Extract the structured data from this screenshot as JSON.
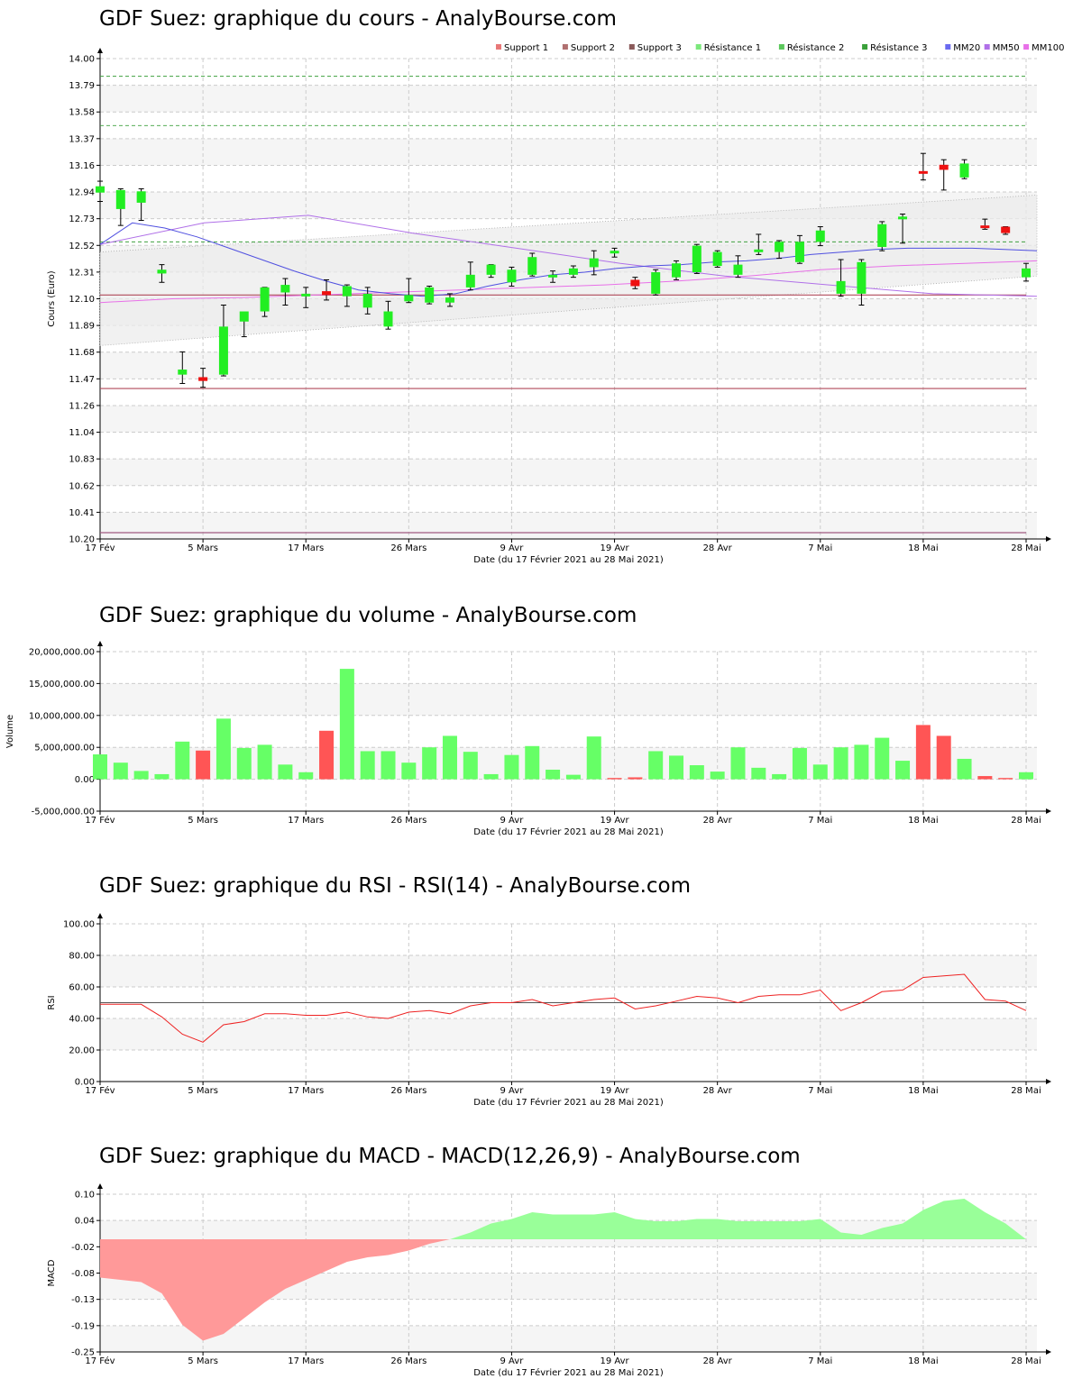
{
  "chart_data": [
    {
      "type": "candlestick",
      "title": "GDF Suez: graphique du cours - AnalyBourse.com",
      "ylabel": "Cours (Euro)",
      "xlabel": "Date (du 17 Février 2021 au 28 Mai 2021)",
      "ylim": [
        10.2,
        14.0
      ],
      "yticks": [
        "14.00",
        "13.79",
        "13.58",
        "13.37",
        "13.16",
        "12.94",
        "12.73",
        "12.52",
        "12.31",
        "12.10",
        "11.89",
        "11.68",
        "11.47",
        "11.26",
        "11.04",
        "10.83",
        "10.62",
        "10.41",
        "10.20"
      ],
      "xticks": [
        {
          "label": "17 Fév",
          "i": 0
        },
        {
          "label": "5 Mars",
          "i": 5
        },
        {
          "label": "17 Mars",
          "i": 10
        },
        {
          "label": "26 Mars",
          "i": 15
        },
        {
          "label": "9 Avr",
          "i": 20
        },
        {
          "label": "19 Avr",
          "i": 25
        },
        {
          "label": "28 Avr",
          "i": 30
        },
        {
          "label": "7 Mai",
          "i": 35
        },
        {
          "label": "18 Mai",
          "i": 40
        },
        {
          "label": "28 Mai",
          "i": 45
        }
      ],
      "legend": [
        "Support 1",
        "Support 2",
        "Support 3",
        "Résistance 1",
        "Résistance 2",
        "Résistance 3",
        "MM20",
        "MM50",
        "MM100"
      ],
      "legend_colors": [
        "#e87878",
        "#b07070",
        "#8a5a5a",
        "#7ce87c",
        "#5cc85c",
        "#3aa03a",
        "#6a6af0",
        "#b070e8",
        "#e870e8"
      ],
      "support_levels": [
        12.13,
        11.39,
        10.25
      ],
      "resistance_levels": [
        12.55,
        13.47,
        13.86
      ],
      "candles": [
        {
          "o": 12.94,
          "h": 13.03,
          "l": 12.87,
          "c": 12.99
        },
        {
          "o": 12.81,
          "h": 12.97,
          "l": 12.68,
          "c": 12.96
        },
        {
          "o": 12.86,
          "h": 12.97,
          "l": 12.72,
          "c": 12.95
        },
        {
          "o": 12.3,
          "h": 12.37,
          "l": 12.23,
          "c": 12.33
        },
        {
          "o": 11.5,
          "h": 11.68,
          "l": 11.43,
          "c": 11.54
        },
        {
          "o": 11.48,
          "h": 11.55,
          "l": 11.4,
          "c": 11.45
        },
        {
          "o": 11.5,
          "h": 12.05,
          "l": 11.49,
          "c": 11.88
        },
        {
          "o": 11.92,
          "h": 11.99,
          "l": 11.8,
          "c": 12.0
        },
        {
          "o": 12.0,
          "h": 12.19,
          "l": 11.96,
          "c": 12.19
        },
        {
          "o": 12.15,
          "h": 12.26,
          "l": 12.05,
          "c": 12.21
        },
        {
          "o": 12.12,
          "h": 12.19,
          "l": 12.03,
          "c": 12.14
        },
        {
          "o": 12.16,
          "h": 12.25,
          "l": 12.09,
          "c": 12.13
        },
        {
          "o": 12.12,
          "h": 12.21,
          "l": 12.04,
          "c": 12.2
        },
        {
          "o": 12.03,
          "h": 12.19,
          "l": 11.98,
          "c": 12.14
        },
        {
          "o": 11.88,
          "h": 12.08,
          "l": 11.86,
          "c": 12.0
        },
        {
          "o": 12.08,
          "h": 12.26,
          "l": 12.07,
          "c": 12.13
        },
        {
          "o": 12.07,
          "h": 12.2,
          "l": 12.06,
          "c": 12.19
        },
        {
          "o": 12.07,
          "h": 12.14,
          "l": 12.04,
          "c": 12.11
        },
        {
          "o": 12.19,
          "h": 12.39,
          "l": 12.17,
          "c": 12.29
        },
        {
          "o": 12.29,
          "h": 12.37,
          "l": 12.27,
          "c": 12.37
        },
        {
          "o": 12.23,
          "h": 12.35,
          "l": 12.2,
          "c": 12.33
        },
        {
          "o": 12.29,
          "h": 12.46,
          "l": 12.28,
          "c": 12.43
        },
        {
          "o": 12.29,
          "h": 12.32,
          "l": 12.23,
          "c": 12.29
        },
        {
          "o": 12.29,
          "h": 12.36,
          "l": 12.27,
          "c": 12.34
        },
        {
          "o": 12.35,
          "h": 12.48,
          "l": 12.29,
          "c": 12.42
        },
        {
          "o": 12.46,
          "h": 12.5,
          "l": 12.43,
          "c": 12.48
        },
        {
          "o": 12.25,
          "h": 12.27,
          "l": 12.18,
          "c": 12.2
        },
        {
          "o": 12.14,
          "h": 12.33,
          "l": 12.13,
          "c": 12.31
        },
        {
          "o": 12.27,
          "h": 12.4,
          "l": 12.25,
          "c": 12.38
        },
        {
          "o": 12.31,
          "h": 12.53,
          "l": 12.3,
          "c": 12.52
        },
        {
          "o": 12.36,
          "h": 12.48,
          "l": 12.35,
          "c": 12.47
        },
        {
          "o": 12.29,
          "h": 12.44,
          "l": 12.27,
          "c": 12.37
        },
        {
          "o": 12.47,
          "h": 12.61,
          "l": 12.45,
          "c": 12.49
        },
        {
          "o": 12.47,
          "h": 12.56,
          "l": 12.42,
          "c": 12.55
        },
        {
          "o": 12.39,
          "h": 12.6,
          "l": 12.38,
          "c": 12.55
        },
        {
          "o": 12.55,
          "h": 12.67,
          "l": 12.52,
          "c": 12.64
        },
        {
          "o": 12.14,
          "h": 12.41,
          "l": 12.12,
          "c": 12.24
        },
        {
          "o": 12.14,
          "h": 12.41,
          "l": 12.05,
          "c": 12.39
        },
        {
          "o": 12.51,
          "h": 12.71,
          "l": 12.48,
          "c": 12.69
        },
        {
          "o": 12.73,
          "h": 12.77,
          "l": 12.54,
          "c": 12.75
        },
        {
          "o": 13.11,
          "h": 13.25,
          "l": 13.04,
          "c": 13.1
        },
        {
          "o": 13.16,
          "h": 13.2,
          "l": 12.96,
          "c": 13.12
        },
        {
          "o": 13.06,
          "h": 13.2,
          "l": 13.05,
          "c": 13.17
        },
        {
          "o": 12.68,
          "h": 12.73,
          "l": 12.65,
          "c": 12.66
        },
        {
          "o": 12.67,
          "h": 12.67,
          "l": 12.61,
          "c": 12.62
        },
        {
          "o": 12.27,
          "h": 12.38,
          "l": 12.24,
          "c": 12.34
        }
      ],
      "mm20": [
        12.53,
        12.7,
        12.66,
        12.59,
        12.5,
        12.41,
        12.32,
        12.24,
        12.17,
        12.14,
        12.12,
        12.14,
        12.2,
        12.25,
        12.29,
        12.31,
        12.34,
        12.36,
        12.37,
        12.39,
        12.4,
        12.42,
        12.45,
        12.47,
        12.49,
        12.5,
        12.5,
        12.5,
        12.49,
        12.48
      ],
      "mm50": [
        12.53,
        12.7,
        12.76,
        12.62,
        12.5,
        12.38,
        12.28,
        12.21,
        12.14,
        12.12
      ],
      "mm100": [
        12.07,
        12.1,
        12.11,
        12.13,
        12.15,
        12.17,
        12.19,
        12.21,
        12.24,
        12.28,
        12.33,
        12.36,
        12.38,
        12.4
      ]
    },
    {
      "type": "bar",
      "title": "GDF Suez: graphique du volume - AnalyBourse.com",
      "ylabel": "Volume",
      "xlabel": "Date (du 17 Février 2021 au 28 Mai 2021)",
      "ylim": [
        -5000000,
        20000000
      ],
      "yticks": [
        "20,000,000.00",
        "15,000,000.00",
        "10,000,000.00",
        "5,000,000.00",
        "0.00",
        "-5,000,000.00"
      ],
      "xticks": [
        "17 Fév",
        "5 Mars",
        "17 Mars",
        "26 Mars",
        "9 Avr",
        "19 Avr",
        "28 Avr",
        "7 Mai",
        "18 Mai",
        "28 Mai"
      ],
      "values": [
        3900000,
        2600000,
        1300000,
        800000,
        5900000,
        4500000,
        9500000,
        4900000,
        5400000,
        2300000,
        1100000,
        7600000,
        17300000,
        4400000,
        4400000,
        2600000,
        5000000,
        6800000,
        4300000,
        800000,
        3800000,
        5200000,
        1500000,
        700000,
        6700000,
        200000,
        300000,
        4400000,
        3700000,
        2200000,
        1200000,
        5000000,
        1800000,
        800000,
        4900000,
        2300000,
        5000000,
        5400000,
        6500000,
        2900000,
        8500000,
        6800000,
        3200000,
        500000,
        200000,
        1100000
      ],
      "down_days": [
        5,
        11,
        25,
        26,
        40,
        41,
        43,
        44
      ]
    },
    {
      "type": "line",
      "title": "GDF Suez: graphique du RSI - RSI(14) - AnalyBourse.com",
      "ylabel": "RSI",
      "xlabel": "Date (du 17 Février 2021 au 28 Mai 2021)",
      "ylim": [
        0,
        100
      ],
      "yticks": [
        "100.00",
        "80.00",
        "60.00",
        "40.00",
        "20.00",
        "0.00"
      ],
      "xticks": [
        "17 Fév",
        "5 Mars",
        "17 Mars",
        "26 Mars",
        "9 Avr",
        "19 Avr",
        "28 Avr",
        "7 Mai",
        "18 Mai",
        "28 Mai"
      ],
      "reference": 50,
      "values": [
        49,
        49,
        49,
        41,
        30,
        25,
        36,
        38,
        43,
        43,
        42,
        42,
        44,
        41,
        40,
        44,
        45,
        43,
        48,
        50,
        50,
        52,
        48,
        50,
        52,
        53,
        46,
        48,
        51,
        54,
        53,
        50,
        54,
        55,
        55,
        58,
        45,
        50,
        57,
        58,
        66,
        67,
        68,
        52,
        51,
        45
      ]
    },
    {
      "type": "area",
      "title": "GDF Suez: graphique du MACD - MACD(12,26,9) - AnalyBourse.com",
      "ylabel": "MACD",
      "xlabel": "Date (du 17 Février 2021 au 28 Mai 2021)",
      "ylim": [
        -0.25,
        0.1
      ],
      "yticks": [
        "0.10",
        "0.04",
        "-0.02",
        "-0.08",
        "-0.13",
        "-0.19",
        "-0.25"
      ],
      "xticks": [
        "17 Fév",
        "5 Mars",
        "17 Mars",
        "26 Mars",
        "9 Avr",
        "19 Avr",
        "28 Avr",
        "7 Mai",
        "18 Mai",
        "28 Mai"
      ],
      "values": [
        -0.085,
        -0.09,
        -0.095,
        -0.12,
        -0.19,
        -0.225,
        -0.21,
        -0.175,
        -0.14,
        -0.11,
        -0.09,
        -0.07,
        -0.05,
        -0.04,
        -0.035,
        -0.025,
        -0.01,
        0.0,
        0.015,
        0.035,
        0.045,
        0.06,
        0.055,
        0.055,
        0.055,
        0.06,
        0.045,
        0.04,
        0.04,
        0.045,
        0.045,
        0.04,
        0.04,
        0.04,
        0.04,
        0.045,
        0.015,
        0.01,
        0.025,
        0.035,
        0.065,
        0.085,
        0.09,
        0.06,
        0.035,
        0.0
      ]
    }
  ]
}
